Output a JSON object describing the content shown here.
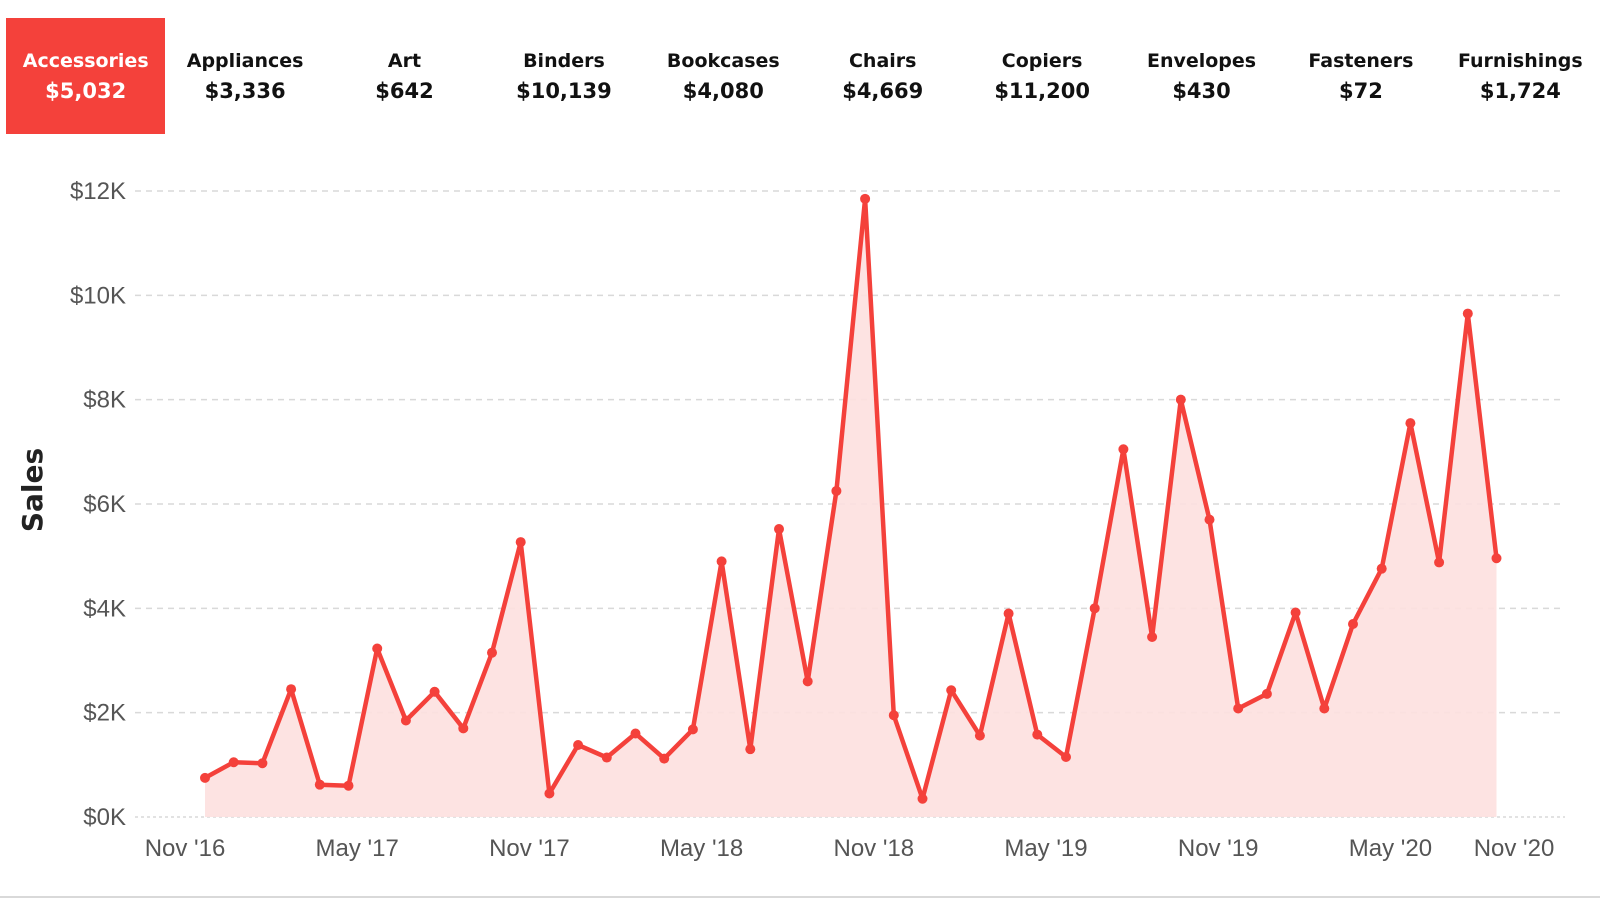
{
  "tiles": [
    {
      "category": "Accessories",
      "value": "$5,032",
      "selected": true
    },
    {
      "category": "Appliances",
      "value": "$3,336",
      "selected": false
    },
    {
      "category": "Art",
      "value": "$642",
      "selected": false
    },
    {
      "category": "Binders",
      "value": "$10,139",
      "selected": false
    },
    {
      "category": "Bookcases",
      "value": "$4,080",
      "selected": false
    },
    {
      "category": "Chairs",
      "value": "$4,669",
      "selected": false
    },
    {
      "category": "Copiers",
      "value": "$11,200",
      "selected": false
    },
    {
      "category": "Envelopes",
      "value": "$430",
      "selected": false
    },
    {
      "category": "Fasteners",
      "value": "$72",
      "selected": false
    },
    {
      "category": "Furnishings",
      "value": "$1,724",
      "selected": false
    }
  ],
  "colors": {
    "accent": "#f4413b",
    "area_fill": "#fde0df",
    "grid": "#d9d9d9",
    "axis_text": "#555555"
  },
  "chart_data": {
    "type": "area",
    "title": "",
    "xlabel": "",
    "ylabel": "Sales",
    "ylim": [
      0,
      12000
    ],
    "grid": true,
    "y_ticks": [
      0,
      2000,
      4000,
      6000,
      8000,
      10000,
      12000
    ],
    "y_tick_labels": [
      "$0K",
      "$2K",
      "$4K",
      "$6K",
      "$8K",
      "$10K",
      "$12K"
    ],
    "x_tick_labels": [
      "Nov '16",
      "May '17",
      "Nov '17",
      "May '18",
      "Nov '18",
      "May '19",
      "Nov '19",
      "May '20",
      "Nov '20"
    ],
    "x_start": "2017-01",
    "series": [
      {
        "values": [
          750,
          1050,
          1030,
          2450,
          620,
          600,
          3230,
          1850,
          2400,
          1700,
          3150,
          5270,
          450,
          1380,
          1140,
          1600,
          1120,
          1680,
          4900,
          1300,
          5520,
          2600,
          6250,
          11850,
          1950,
          350,
          2430,
          1560,
          3900,
          1580,
          1150,
          4000,
          7050,
          3450,
          8000,
          5700,
          2080,
          2360,
          3920,
          2080,
          3700,
          4760,
          7550,
          4880,
          9650,
          4960
        ]
      }
    ]
  }
}
